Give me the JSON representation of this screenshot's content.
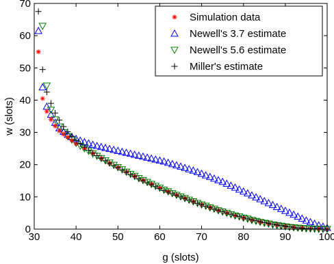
{
  "chart_data": {
    "type": "scatter",
    "title": "",
    "xlabel": "g (slots)",
    "ylabel": "w (slots)",
    "xlim": [
      30,
      100
    ],
    "ylim": [
      0,
      70
    ],
    "xticks": [
      30,
      40,
      50,
      60,
      70,
      80,
      90,
      100
    ],
    "yticks": [
      0,
      10,
      20,
      30,
      40,
      50,
      60,
      70
    ],
    "grid": false,
    "legend": "top-right",
    "series": [
      {
        "name": "Simulation data",
        "marker": "asterisk",
        "color": "#ff0000",
        "x": [
          31,
          32,
          33,
          34,
          35,
          36,
          37,
          38,
          39,
          40,
          42,
          44,
          46,
          48,
          50,
          52,
          54,
          56,
          58,
          60,
          62,
          64,
          66,
          68,
          70,
          72,
          74,
          76,
          78,
          80,
          82,
          84,
          86,
          88,
          90,
          92,
          94,
          96,
          98,
          100
        ],
        "y": [
          55,
          40.5,
          36.5,
          34,
          32,
          30.5,
          29.5,
          28.5,
          27.5,
          26.5,
          25,
          23.5,
          22,
          20.5,
          19.2,
          17.8,
          16.5,
          15.2,
          14,
          12.8,
          11.7,
          10.6,
          9.6,
          8.6,
          7.6,
          6.7,
          5.8,
          5,
          4.2,
          3.5,
          2.8,
          2.2,
          1.7,
          1.3,
          0.9,
          0.6,
          0.4,
          0.2,
          0.1,
          0
        ]
      },
      {
        "name": "Newell's 3.7 estimate",
        "marker": "triangle-up",
        "color": "#0000ff",
        "x": [
          31,
          32,
          33,
          34,
          35,
          36,
          37,
          38,
          39,
          40,
          41,
          42,
          43,
          44,
          45,
          46,
          47,
          48,
          49,
          50,
          51,
          52,
          53,
          54,
          55,
          56,
          57,
          58,
          59,
          60,
          61,
          62,
          63,
          64,
          65,
          66,
          67,
          68,
          69,
          70,
          71,
          72,
          73,
          74,
          75,
          76,
          77,
          78,
          79,
          80,
          81,
          82,
          83,
          84,
          85,
          86,
          87,
          88,
          89,
          90,
          91,
          92,
          93,
          94,
          95,
          96,
          97,
          98,
          99,
          100
        ],
        "y": [
          61.5,
          44,
          38,
          35.5,
          33,
          31.3,
          30.2,
          29.3,
          28.6,
          28,
          27.5,
          27,
          26.6,
          26.2,
          25.8,
          25.5,
          25.2,
          24.9,
          24.6,
          24.3,
          24,
          23.7,
          23.4,
          23.1,
          22.8,
          22.5,
          22.2,
          21.9,
          21.6,
          21.3,
          21,
          20.6,
          20.2,
          19.8,
          19.4,
          19,
          18.6,
          18.2,
          17.7,
          17.2,
          16.7,
          16.2,
          15.7,
          15.2,
          14.7,
          14.1,
          13.5,
          12.9,
          12.3,
          11.7,
          11.1,
          10.5,
          9.9,
          9.3,
          8.7,
          8.1,
          7.5,
          6.9,
          6.3,
          5.7,
          5.1,
          4.5,
          3.9,
          3.3,
          2.7,
          2.2,
          1.7,
          1.2,
          0.8,
          0.4
        ]
      },
      {
        "name": "Newell's 5.6 estimate",
        "marker": "triangle-down",
        "color": "#008000",
        "x": [
          32,
          33,
          34,
          35,
          36,
          37,
          38,
          39,
          40,
          41,
          42,
          43,
          44,
          45,
          46,
          47,
          48,
          49,
          50,
          51,
          52,
          53,
          54,
          55,
          56,
          57,
          58,
          59,
          60,
          61,
          62,
          63,
          64,
          65,
          66,
          67,
          68,
          69,
          70,
          71,
          72,
          73,
          74,
          75,
          76,
          77,
          78,
          79,
          80,
          81,
          82,
          83,
          84,
          85,
          86,
          87,
          88,
          89,
          90,
          91,
          92,
          93,
          94,
          95,
          96,
          97,
          98,
          99,
          100
        ],
        "y": [
          63,
          44.5,
          37,
          34,
          31.8,
          30,
          28.8,
          27.7,
          26.7,
          25.8,
          25,
          24.2,
          23.4,
          22.7,
          22,
          21.3,
          20.6,
          19.9,
          19.2,
          18.5,
          17.8,
          17.1,
          16.5,
          15.8,
          15.2,
          14.6,
          14,
          13.4,
          12.8,
          12.2,
          11.7,
          11.1,
          10.6,
          10.1,
          9.6,
          9.1,
          8.6,
          8.1,
          7.6,
          7.2,
          6.7,
          6.3,
          5.8,
          5.4,
          5,
          4.6,
          4.2,
          3.9,
          3.5,
          3.2,
          2.8,
          2.5,
          2.2,
          1.9,
          1.7,
          1.4,
          1.2,
          1,
          0.8,
          0.6,
          0.5,
          0.4,
          0.3,
          0.2,
          0.15,
          0.1,
          0.05,
          0.02,
          0
        ]
      },
      {
        "name": "Miller's estimate",
        "marker": "plus",
        "color": "#000000",
        "x": [
          31,
          32,
          33,
          34,
          35,
          36,
          37,
          38,
          39,
          40,
          41,
          42,
          43,
          44,
          45,
          46,
          47,
          48,
          49,
          50,
          51,
          52,
          53,
          54,
          55,
          56,
          57,
          58,
          59,
          60,
          61,
          62,
          63,
          64,
          65,
          66,
          67,
          68,
          69,
          70,
          71,
          72,
          73,
          74,
          75,
          76,
          77,
          78,
          79,
          80,
          81,
          82,
          83,
          84,
          85,
          86,
          87,
          88,
          89,
          90,
          91,
          92,
          93,
          94,
          95,
          96,
          97,
          98,
          99,
          100
        ],
        "y": [
          67.5,
          49.5,
          42.5,
          39,
          36,
          33.8,
          31.8,
          30.2,
          28.8,
          27.5,
          26.4,
          25.4,
          24.5,
          23.6,
          22.8,
          22,
          21.2,
          20.4,
          19.7,
          19,
          18.3,
          17.6,
          16.9,
          16.3,
          15.6,
          15,
          14.4,
          13.8,
          13.2,
          12.6,
          12,
          11.5,
          11,
          10.5,
          10,
          9.5,
          9,
          8.5,
          8,
          7.6,
          7.1,
          6.7,
          6.2,
          5.8,
          5.4,
          5,
          4.6,
          4.2,
          3.9,
          3.5,
          3.2,
          2.9,
          2.6,
          2.3,
          2,
          1.8,
          1.5,
          1.3,
          1.1,
          0.9,
          0.7,
          0.55,
          0.4,
          0.3,
          0.2,
          0.15,
          0.1,
          0.05,
          0.02,
          0
        ]
      }
    ]
  }
}
